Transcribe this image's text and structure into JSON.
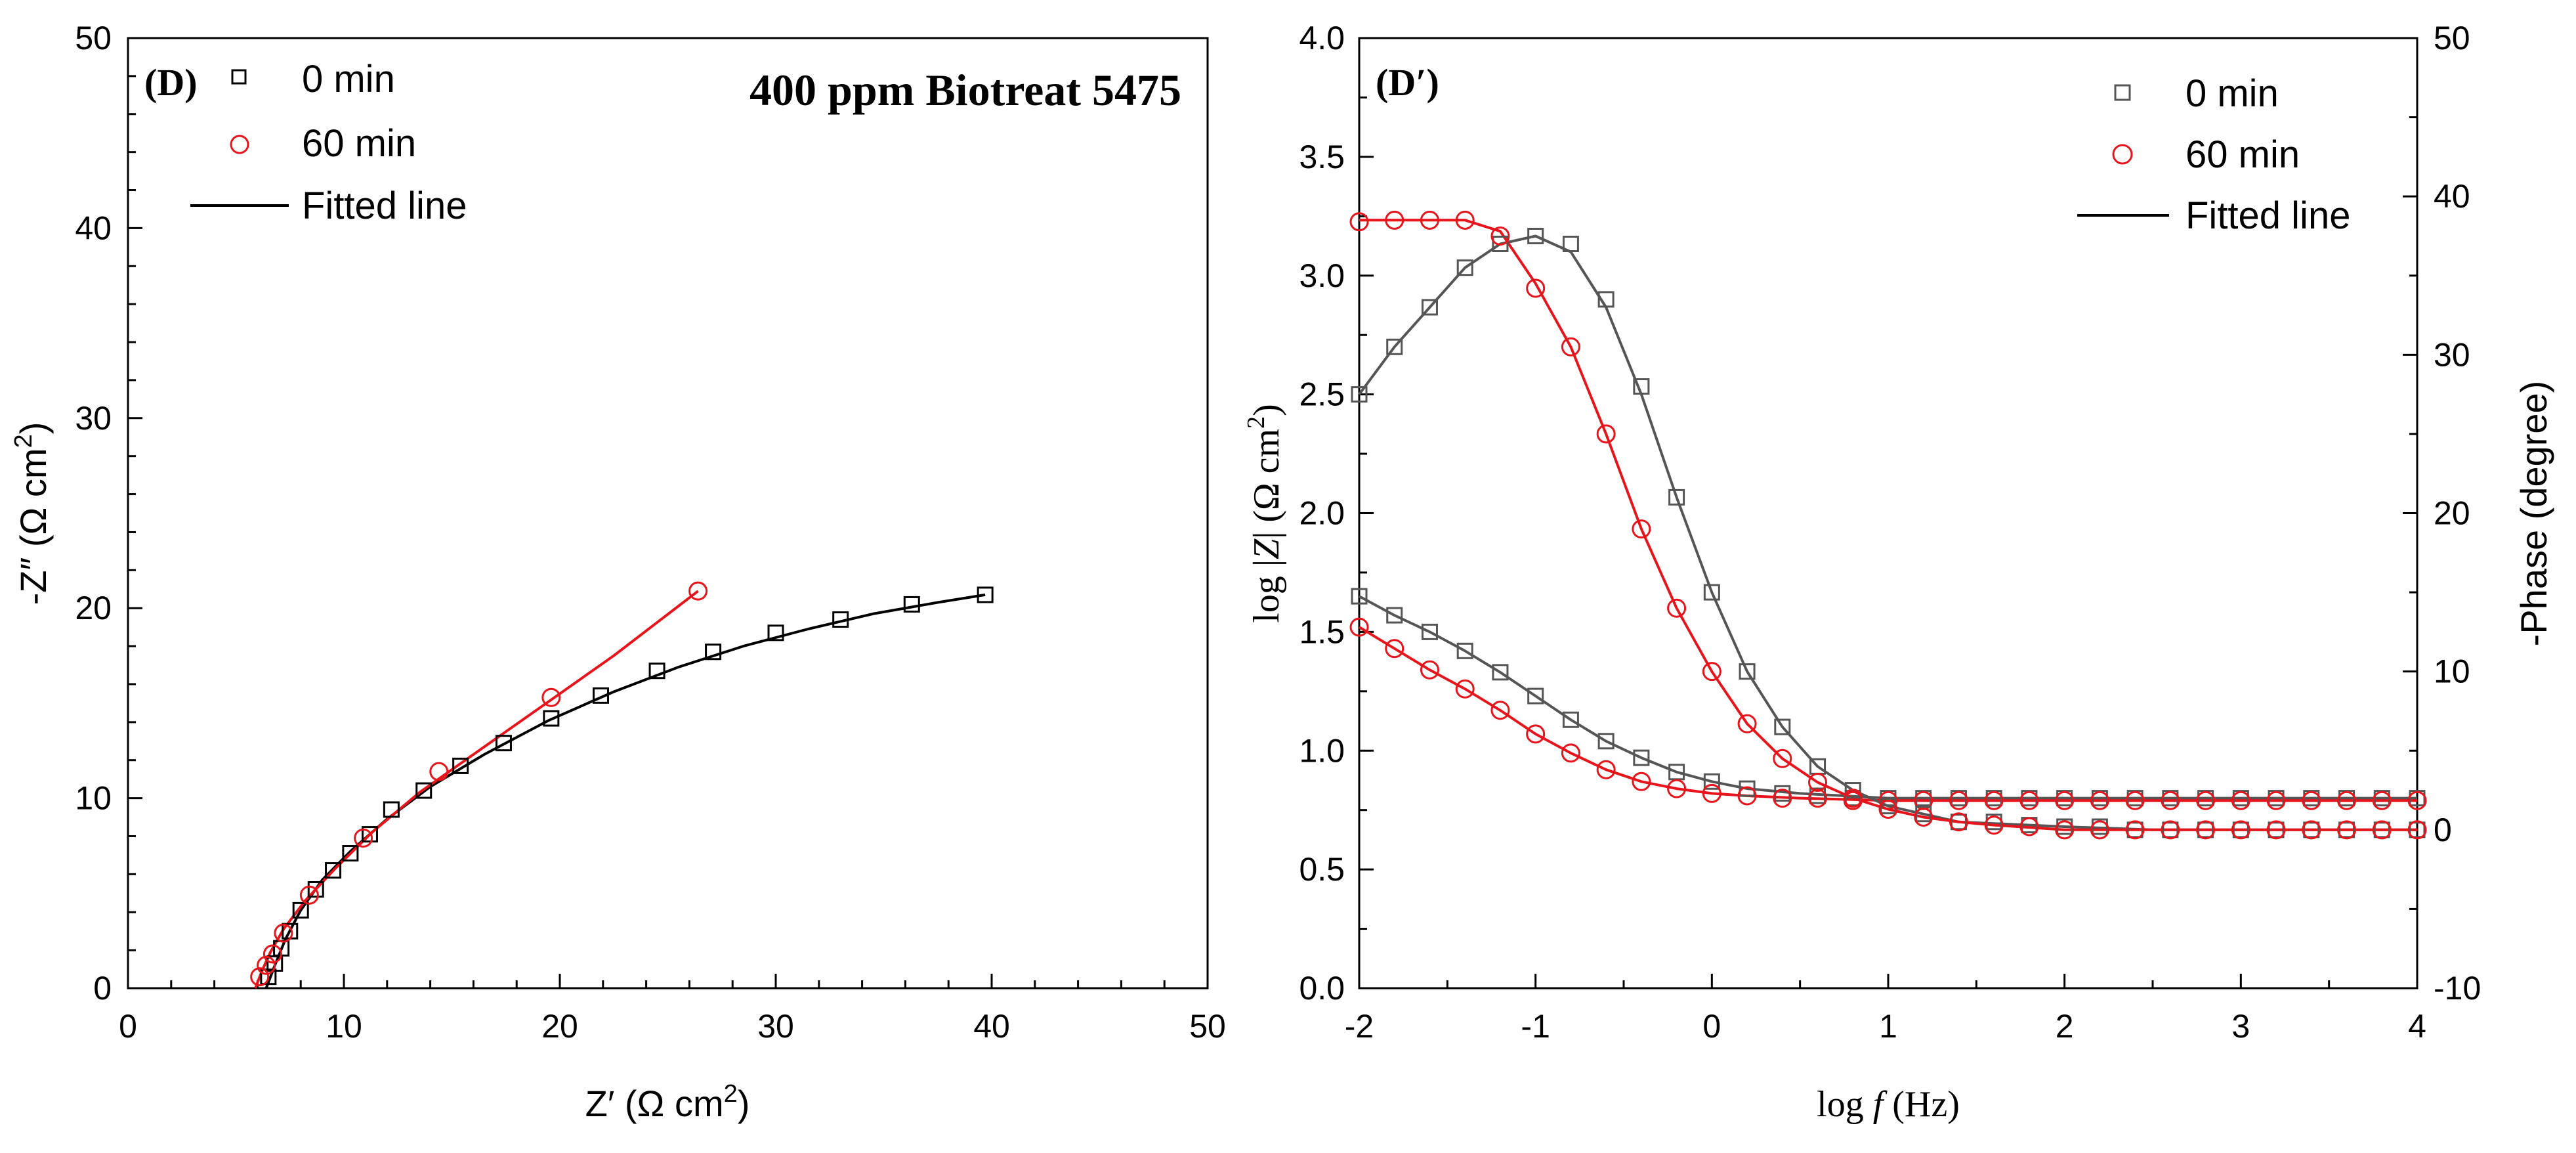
{
  "colors": {
    "black": "#000000",
    "red": "#e8141b",
    "gray": "#555555"
  },
  "chart_data": [
    {
      "type": "scatter",
      "panel_label": "(D)",
      "title": "400 ppm Biotreat 5475",
      "xlabel": "Z′ (Ω cm",
      "xlabel_sup": "2",
      "xlabel_tail": ")",
      "ylabel": "-Z″ (Ω cm",
      "ylabel_sup": "2",
      "ylabel_tail": ")",
      "xlim": [
        0,
        50
      ],
      "ylim": [
        0,
        50
      ],
      "xticks": [
        0,
        10,
        20,
        30,
        40,
        50
      ],
      "yticks": [
        0,
        10,
        20,
        30,
        40,
        50
      ],
      "legend": [
        "0 min",
        "60 min",
        "Fitted line"
      ],
      "series": [
        {
          "name": "0 min",
          "marker": "square",
          "color": "#000000",
          "x": [
            6.5,
            6.8,
            7.1,
            7.5,
            8.0,
            8.7,
            9.5,
            10.3,
            11.2,
            12.2,
            13.7,
            15.4,
            17.4,
            19.6,
            21.9,
            24.5,
            27.1,
            30.0,
            33.0,
            36.3,
            39.7
          ],
          "y": [
            0.6,
            1.3,
            2.1,
            3.0,
            4.1,
            5.2,
            6.2,
            7.1,
            8.1,
            9.4,
            10.4,
            11.7,
            12.9,
            14.2,
            15.4,
            16.7,
            17.7,
            18.7,
            19.4,
            20.2,
            20.7
          ]
        },
        {
          "name": "60 min",
          "marker": "circle",
          "color": "#e8141b",
          "x": [
            6.1,
            6.4,
            6.7,
            7.2,
            8.4,
            10.9,
            14.4,
            19.6,
            26.4
          ],
          "y": [
            0.6,
            1.2,
            1.8,
            2.9,
            4.9,
            7.9,
            11.4,
            15.3,
            20.9
          ]
        }
      ],
      "fits": [
        {
          "name": "0 min fit",
          "color": "#000000",
          "x": [
            6.4,
            6.8,
            7.3,
            8.0,
            9.0,
            10.3,
            12.0,
            14.0,
            16.5,
            19.5,
            22.5,
            25.5,
            28.5,
            31.5,
            34.5,
            37.5,
            39.7
          ],
          "y": [
            0.0,
            1.2,
            2.6,
            4.1,
            5.7,
            7.2,
            8.9,
            10.6,
            12.3,
            14.1,
            15.6,
            16.9,
            18.0,
            18.9,
            19.7,
            20.3,
            20.7
          ]
        },
        {
          "name": "60 min fit",
          "color": "#e8141b",
          "x": [
            5.9,
            6.2,
            6.6,
            7.2,
            8.2,
            9.6,
            11.3,
            13.5,
            16.0,
            19.0,
            22.5,
            26.4
          ],
          "y": [
            0.0,
            0.9,
            1.9,
            3.1,
            4.6,
            6.3,
            8.2,
            10.3,
            12.3,
            14.7,
            17.5,
            20.9
          ]
        }
      ]
    },
    {
      "type": "scatter",
      "panel_label": "(D′)",
      "xlabel_pre": "log ",
      "xlabel_var": "f",
      "xlabel_tail": " (Hz)",
      "ylabel_left_pre": "log |",
      "ylabel_left_var": "Z",
      "ylabel_left_mid": "| (Ω cm",
      "ylabel_left_sup": "2",
      "ylabel_left_tail": ")",
      "ylabel_right": "-Phase (degree)",
      "xlim": [
        -2,
        4
      ],
      "ylim_left": [
        0.0,
        4.0
      ],
      "ylim_right": [
        -10,
        50
      ],
      "xticks": [
        -2,
        -1,
        0,
        1,
        2,
        3,
        4
      ],
      "yticks_left": [
        "0.0",
        "0.5",
        "1.0",
        "1.5",
        "2.0",
        "2.5",
        "3.0",
        "3.5",
        "4.0"
      ],
      "yticks_right": [
        -10,
        0,
        10,
        20,
        30,
        40,
        50
      ],
      "legend": [
        "0 min",
        "60 min",
        "Fitted line"
      ],
      "series": [
        {
          "name": "0 min |Z|",
          "axis": "left",
          "marker": "square",
          "color": "#555555",
          "x": [
            -2.0,
            -1.8,
            -1.6,
            -1.4,
            -1.2,
            -1.0,
            -0.8,
            -0.6,
            -0.4,
            -0.2,
            0.0,
            0.2,
            0.4,
            0.6,
            0.8,
            1.0,
            1.2,
            1.4,
            1.6,
            1.8,
            2.0,
            2.2,
            2.4,
            2.6,
            2.8,
            3.0,
            3.2,
            3.4,
            3.6,
            3.8,
            4.0
          ],
          "y": [
            1.65,
            1.57,
            1.5,
            1.42,
            1.33,
            1.23,
            1.13,
            1.04,
            0.97,
            0.91,
            0.87,
            0.84,
            0.82,
            0.81,
            0.8,
            0.8,
            0.8,
            0.8,
            0.8,
            0.8,
            0.8,
            0.8,
            0.8,
            0.8,
            0.8,
            0.8,
            0.8,
            0.8,
            0.8,
            0.8,
            0.8
          ]
        },
        {
          "name": "60 min |Z|",
          "axis": "left",
          "marker": "circle",
          "color": "#e8141b",
          "x": [
            -2.0,
            -1.8,
            -1.6,
            -1.4,
            -1.2,
            -1.0,
            -0.8,
            -0.6,
            -0.4,
            -0.2,
            0.0,
            0.2,
            0.4,
            0.6,
            0.8,
            1.0,
            1.2,
            1.4,
            1.6,
            1.8,
            2.0,
            2.2,
            2.4,
            2.6,
            2.8,
            3.0,
            3.2,
            3.4,
            3.6,
            3.8,
            4.0
          ],
          "y": [
            1.52,
            1.43,
            1.34,
            1.26,
            1.17,
            1.07,
            0.99,
            0.92,
            0.87,
            0.84,
            0.82,
            0.81,
            0.8,
            0.8,
            0.79,
            0.79,
            0.79,
            0.79,
            0.79,
            0.79,
            0.79,
            0.79,
            0.79,
            0.79,
            0.79,
            0.79,
            0.79,
            0.79,
            0.79,
            0.79,
            0.79
          ]
        },
        {
          "name": "0 min phase",
          "axis": "right",
          "marker": "square",
          "color": "#555555",
          "x": [
            -2.0,
            -1.8,
            -1.6,
            -1.4,
            -1.2,
            -1.0,
            -0.8,
            -0.6,
            -0.4,
            -0.2,
            0.0,
            0.2,
            0.4,
            0.6,
            0.8,
            1.0,
            1.2,
            1.4,
            1.6,
            1.8,
            2.0,
            2.2,
            2.4,
            2.6,
            2.8,
            3.0,
            3.2,
            3.4,
            3.6,
            3.8,
            4.0
          ],
          "y": [
            27.5,
            30.5,
            33.0,
            35.5,
            37.0,
            37.5,
            37.0,
            33.5,
            28.0,
            21.0,
            15.0,
            10.0,
            6.5,
            4.0,
            2.5,
            1.5,
            1.0,
            0.5,
            0.5,
            0.3,
            0.2,
            0.2,
            0.0,
            0.0,
            0.0,
            0.0,
            0.0,
            0.0,
            0.0,
            0.0,
            0.0
          ]
        },
        {
          "name": "60 min phase",
          "axis": "right",
          "marker": "circle",
          "color": "#e8141b",
          "x": [
            -2.0,
            -1.8,
            -1.6,
            -1.4,
            -1.2,
            -1.0,
            -0.8,
            -0.6,
            -0.4,
            -0.2,
            0.0,
            0.2,
            0.4,
            0.6,
            0.8,
            1.0,
            1.2,
            1.4,
            1.6,
            1.8,
            2.0,
            2.2,
            2.4,
            2.6,
            2.8,
            3.0,
            3.2,
            3.4,
            3.6,
            3.8,
            4.0
          ],
          "y": [
            38.4,
            38.5,
            38.5,
            38.5,
            37.5,
            34.2,
            30.5,
            25.0,
            19.0,
            14.0,
            10.0,
            6.7,
            4.5,
            3.0,
            2.0,
            1.3,
            0.8,
            0.5,
            0.3,
            0.2,
            0.0,
            0.0,
            0.0,
            0.0,
            0.0,
            0.0,
            0.0,
            0.0,
            0.0,
            0.0,
            0.0
          ]
        }
      ],
      "fits": [
        {
          "name": "0 min |Z| fit",
          "axis": "left",
          "color": "#555555",
          "x": [
            -2.0,
            -1.8,
            -1.6,
            -1.4,
            -1.2,
            -1.0,
            -0.8,
            -0.6,
            -0.4,
            -0.2,
            0.0,
            0.2,
            0.5,
            1.0,
            2.0,
            3.0,
            4.0
          ],
          "y": [
            1.65,
            1.57,
            1.5,
            1.42,
            1.33,
            1.23,
            1.13,
            1.04,
            0.97,
            0.91,
            0.87,
            0.84,
            0.82,
            0.8,
            0.8,
            0.8,
            0.8
          ]
        },
        {
          "name": "60 min |Z| fit",
          "axis": "left",
          "color": "#e8141b",
          "x": [
            -2.0,
            -1.8,
            -1.6,
            -1.4,
            -1.2,
            -1.0,
            -0.8,
            -0.6,
            -0.4,
            -0.2,
            0.0,
            0.2,
            0.5,
            1.0,
            2.0,
            3.0,
            4.0
          ],
          "y": [
            1.52,
            1.43,
            1.34,
            1.26,
            1.17,
            1.07,
            0.99,
            0.92,
            0.87,
            0.84,
            0.82,
            0.81,
            0.8,
            0.79,
            0.79,
            0.79,
            0.79
          ]
        },
        {
          "name": "0 min phase fit",
          "axis": "right",
          "color": "#555555",
          "x": [
            -2.0,
            -1.8,
            -1.6,
            -1.4,
            -1.2,
            -1.0,
            -0.8,
            -0.6,
            -0.4,
            -0.2,
            0.0,
            0.2,
            0.4,
            0.6,
            0.8,
            1.0,
            1.2,
            1.4,
            1.6,
            2.0,
            2.5,
            3.0,
            4.0
          ],
          "y": [
            27.5,
            30.5,
            33.0,
            35.5,
            37.0,
            37.5,
            36.5,
            33.0,
            27.5,
            21.0,
            15.0,
            10.0,
            6.5,
            4.0,
            2.5,
            1.5,
            1.0,
            0.5,
            0.4,
            0.2,
            0.0,
            0.0,
            0.0
          ]
        },
        {
          "name": "60 min phase fit",
          "axis": "right",
          "color": "#e8141b",
          "x": [
            -2.0,
            -1.8,
            -1.6,
            -1.4,
            -1.2,
            -1.0,
            -0.8,
            -0.6,
            -0.4,
            -0.2,
            0.0,
            0.2,
            0.4,
            0.6,
            0.8,
            1.0,
            1.2,
            1.4,
            1.6,
            2.0,
            2.5,
            3.0,
            4.0
          ],
          "y": [
            38.5,
            38.5,
            38.5,
            38.5,
            37.8,
            34.5,
            30.5,
            25.0,
            19.0,
            14.0,
            10.0,
            6.7,
            4.5,
            3.0,
            2.0,
            1.3,
            0.8,
            0.5,
            0.3,
            0.0,
            0.0,
            0.0,
            0.0
          ]
        }
      ]
    }
  ]
}
